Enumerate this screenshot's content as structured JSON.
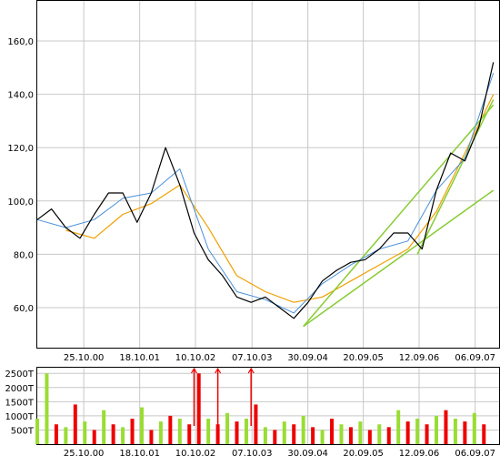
{
  "chart_data": [
    {
      "type": "line",
      "title": "",
      "xlabel": "",
      "ylabel": "",
      "x_ticks": [
        "25.10.00",
        "18.10.01",
        "10.10.02",
        "07.10.03",
        "30.09.04",
        "20.09.05",
        "12.09.06",
        "06.09.07"
      ],
      "y_ticks": [
        "60,0",
        "80,0",
        "100,0",
        "120,0",
        "140,0",
        "160,0"
      ],
      "ylim": [
        45,
        175
      ],
      "grid": true,
      "colors": {
        "price": "#000000",
        "ma_fast": "#4a90d9",
        "ma_slow": "#f0a000",
        "trend": "#88cc33"
      },
      "series": [
        {
          "role": "price",
          "x": [
            "2000-01",
            "2000-04",
            "2000-07",
            "2000-10",
            "2001-01",
            "2001-04",
            "2001-07",
            "2001-10",
            "2002-01",
            "2002-04",
            "2002-07",
            "2002-10",
            "2003-01",
            "2003-04",
            "2003-07",
            "2003-10",
            "2004-01",
            "2004-04",
            "2004-07",
            "2004-10",
            "2005-01",
            "2005-04",
            "2005-07",
            "2005-10",
            "2006-01",
            "2006-04",
            "2006-07",
            "2006-10",
            "2007-01",
            "2007-04",
            "2007-07",
            "2007-10",
            "2008-01"
          ],
          "values": [
            93,
            97,
            90,
            86,
            95,
            103,
            103,
            92,
            103,
            120,
            106,
            88,
            78,
            72,
            64,
            62,
            64,
            60,
            56,
            62,
            70,
            74,
            77,
            78,
            82,
            88,
            88,
            82,
            104,
            118,
            115,
            128,
            152
          ]
        },
        {
          "role": "ma_fast",
          "x": [
            "2000-01",
            "2000-07",
            "2001-01",
            "2001-07",
            "2002-01",
            "2002-07",
            "2003-01",
            "2003-07",
            "2004-01",
            "2004-07",
            "2005-01",
            "2005-07",
            "2006-01",
            "2006-07",
            "2007-01",
            "2007-07",
            "2008-01"
          ],
          "values": [
            93,
            90,
            93,
            101,
            103,
            112,
            82,
            66,
            63,
            58,
            69,
            76,
            82,
            85,
            104,
            116,
            148
          ]
        },
        {
          "role": "ma_slow",
          "x": [
            "2000-07",
            "2001-01",
            "2001-07",
            "2002-01",
            "2002-07",
            "2003-01",
            "2003-07",
            "2004-01",
            "2004-07",
            "2005-01",
            "2005-07",
            "2006-01",
            "2006-07",
            "2007-01",
            "2007-07",
            "2008-01"
          ],
          "values": [
            89,
            86,
            95,
            99,
            106,
            90,
            72,
            66,
            62,
            64,
            70,
            76,
            82,
            96,
            118,
            140
          ]
        },
        {
          "role": "trend",
          "x": [
            "2004-09",
            "2008-01"
          ],
          "values": [
            53,
            104
          ]
        },
        {
          "role": "trend",
          "x": [
            "2004-09",
            "2008-01"
          ],
          "values": [
            53,
            136
          ]
        },
        {
          "role": "trend",
          "x": [
            "2006-09",
            "2008-01"
          ],
          "values": [
            80,
            138
          ]
        }
      ]
    },
    {
      "type": "bar",
      "title": "",
      "y_ticks": [
        "500T",
        "1000T",
        "1500T",
        "2000T",
        "2500T"
      ],
      "ylim": [
        0,
        2700
      ],
      "x_ticks": [
        "25.10.00",
        "18.10.01",
        "10.10.02",
        "07.10.03",
        "30.09.04",
        "20.09.05",
        "12.09.06",
        "06.09.07"
      ],
      "colors": {
        "down": "#ee0000",
        "up": "#99dd33"
      },
      "x": [
        "2000-01",
        "2000-03",
        "2000-05",
        "2000-07",
        "2000-09",
        "2000-11",
        "2001-01",
        "2001-03",
        "2001-05",
        "2001-07",
        "2001-09",
        "2001-11",
        "2002-01",
        "2002-03",
        "2002-05",
        "2002-07",
        "2002-09",
        "2002-11",
        "2003-01",
        "2003-03",
        "2003-05",
        "2003-07",
        "2003-09",
        "2003-11",
        "2004-01",
        "2004-03",
        "2004-05",
        "2004-07",
        "2004-09",
        "2004-11",
        "2005-01",
        "2005-03",
        "2005-05",
        "2005-07",
        "2005-09",
        "2005-11",
        "2006-01",
        "2006-03",
        "2006-05",
        "2006-07",
        "2006-09",
        "2006-11",
        "2007-01",
        "2007-03",
        "2007-05",
        "2007-07",
        "2007-09",
        "2007-11"
      ],
      "values": [
        900,
        2500,
        700,
        600,
        1400,
        800,
        500,
        1200,
        700,
        600,
        900,
        1300,
        500,
        800,
        1000,
        900,
        700,
        2500,
        900,
        700,
        1100,
        800,
        900,
        1400,
        600,
        500,
        800,
        700,
        1000,
        600,
        500,
        900,
        700,
        600,
        800,
        500,
        700,
        600,
        1200,
        800,
        900,
        700,
        1000,
        1200,
        900,
        800,
        1100,
        700
      ],
      "direction": [
        "up",
        "up",
        "down",
        "up",
        "down",
        "up",
        "down",
        "up",
        "down",
        "up",
        "down",
        "up",
        "down",
        "up",
        "down",
        "up",
        "down",
        "down",
        "up",
        "down",
        "up",
        "down",
        "up",
        "down",
        "up",
        "down",
        "up",
        "down",
        "up",
        "down",
        "up",
        "down",
        "up",
        "down",
        "up",
        "down",
        "up",
        "down",
        "up",
        "down",
        "up",
        "down",
        "up",
        "down",
        "up",
        "down",
        "up",
        "down"
      ],
      "overflow_markers": [
        "2002-10",
        "2003-03",
        "2003-10"
      ]
    }
  ]
}
